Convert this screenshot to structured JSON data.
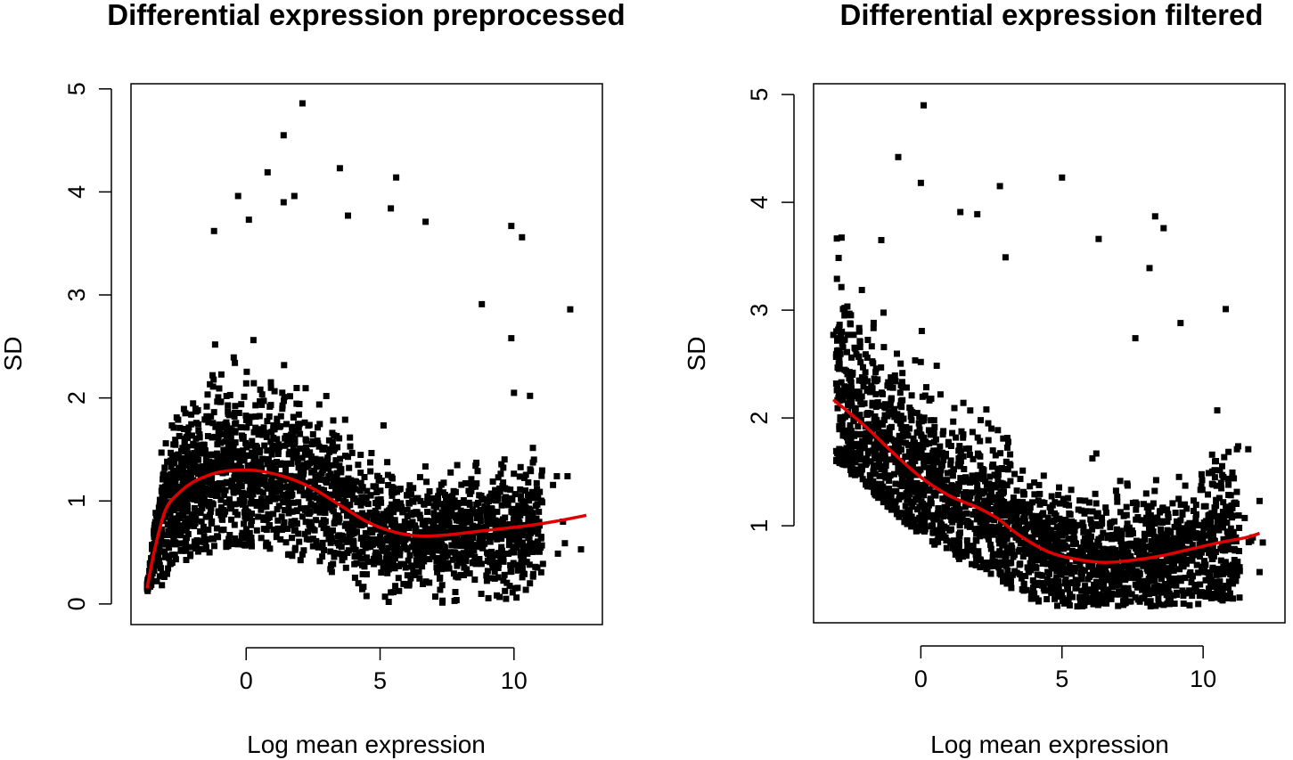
{
  "colors": {
    "points": "#000000",
    "trend": "#e00000",
    "axis": "#000000",
    "background": "#ffffff"
  },
  "chart_data": [
    {
      "type": "scatter",
      "title": "Differential expression preprocessed",
      "xlabel": "Log mean expression",
      "ylabel": "SD",
      "xlim": [
        -4.3,
        13.3
      ],
      "ylim": [
        -0.2,
        5.05
      ],
      "xticks": [
        0,
        5,
        10
      ],
      "yticks": [
        0,
        1,
        2,
        3,
        4,
        5
      ],
      "grid": false,
      "legend": "none",
      "cloud": {
        "x_range": [
          -3.7,
          12.6
        ],
        "ridge_x": -0.3,
        "spread": 0.5
      },
      "outliers": [
        {
          "x": 2.1,
          "y": 4.86
        },
        {
          "x": 1.4,
          "y": 4.55
        },
        {
          "x": 0.8,
          "y": 4.19
        },
        {
          "x": 3.5,
          "y": 4.23
        },
        {
          "x": 5.6,
          "y": 4.14
        },
        {
          "x": -0.3,
          "y": 3.96
        },
        {
          "x": 1.8,
          "y": 3.96
        },
        {
          "x": 1.4,
          "y": 3.9
        },
        {
          "x": 0.1,
          "y": 3.73
        },
        {
          "x": 3.8,
          "y": 3.77
        },
        {
          "x": 6.7,
          "y": 3.71
        },
        {
          "x": 9.9,
          "y": 3.67
        },
        {
          "x": 10.3,
          "y": 3.56
        },
        {
          "x": 5.4,
          "y": 3.84
        },
        {
          "x": -1.2,
          "y": 3.62
        },
        {
          "x": 12.1,
          "y": 2.86
        },
        {
          "x": 8.8,
          "y": 2.91
        },
        {
          "x": 9.9,
          "y": 2.58
        },
        {
          "x": 10.0,
          "y": 2.05
        },
        {
          "x": 10.6,
          "y": 2.02
        },
        {
          "x": 11.6,
          "y": 1.24
        },
        {
          "x": 12.0,
          "y": 1.24
        },
        {
          "x": 12.5,
          "y": 0.53
        },
        {
          "x": 11.9,
          "y": 0.59
        }
      ],
      "trend_line": {
        "x": [
          -3.7,
          -3.4,
          -3.0,
          -2.5,
          -2.0,
          -1.5,
          -1.0,
          -0.3,
          0.5,
          1.5,
          2.5,
          3.5,
          4.5,
          5.5,
          6.5,
          7.5,
          8.5,
          9.5,
          10.5,
          11.5,
          12.7
        ],
        "y": [
          0.15,
          0.55,
          0.92,
          1.08,
          1.18,
          1.24,
          1.28,
          1.3,
          1.29,
          1.23,
          1.12,
          0.96,
          0.8,
          0.7,
          0.66,
          0.67,
          0.7,
          0.73,
          0.76,
          0.8,
          0.86
        ]
      }
    },
    {
      "type": "scatter",
      "title": "Differential expression filtered",
      "xlabel": "Log mean expression",
      "ylabel": "SD",
      "xlim": [
        -3.8,
        12.9
      ],
      "ylim": [
        0.1,
        5.1
      ],
      "xticks": [
        0,
        5,
        10
      ],
      "yticks": [
        1,
        2,
        3,
        4,
        5
      ],
      "grid": false,
      "legend": "none",
      "cloud": {
        "x_range": [
          -3.3,
          12.0
        ],
        "ridge_x": -3.0,
        "spread": 0.5
      },
      "outliers": [
        {
          "x": 0.1,
          "y": 4.9
        },
        {
          "x": -0.8,
          "y": 4.42
        },
        {
          "x": 5.0,
          "y": 4.23
        },
        {
          "x": 0.0,
          "y": 4.18
        },
        {
          "x": 2.8,
          "y": 4.15
        },
        {
          "x": 8.3,
          "y": 3.87
        },
        {
          "x": 8.6,
          "y": 3.76
        },
        {
          "x": -1.4,
          "y": 3.65
        },
        {
          "x": 1.4,
          "y": 3.91
        },
        {
          "x": 2.0,
          "y": 3.89
        },
        {
          "x": 6.3,
          "y": 3.66
        },
        {
          "x": 3.0,
          "y": 3.49
        },
        {
          "x": 8.1,
          "y": 3.39
        },
        {
          "x": 10.8,
          "y": 3.01
        },
        {
          "x": 7.6,
          "y": 2.74
        },
        {
          "x": 9.2,
          "y": 2.88
        },
        {
          "x": -3.1,
          "y": 2.77
        },
        {
          "x": -2.9,
          "y": 2.74
        },
        {
          "x": 10.5,
          "y": 2.07
        },
        {
          "x": 11.2,
          "y": 1.71
        },
        {
          "x": 11.6,
          "y": 1.71
        },
        {
          "x": 11.7,
          "y": 0.86
        },
        {
          "x": 12.0,
          "y": 1.23
        },
        {
          "x": 12.0,
          "y": 0.57
        },
        {
          "x": 10.8,
          "y": 0.58
        },
        {
          "x": 10.9,
          "y": 1.38
        }
      ],
      "trend_line": {
        "x": [
          -3.1,
          -2.0,
          -1.0,
          0.0,
          1.0,
          2.0,
          2.7,
          3.5,
          4.5,
          5.5,
          6.5,
          7.5,
          8.5,
          9.5,
          10.5,
          11.5,
          12.0
        ],
        "y": [
          2.17,
          1.93,
          1.68,
          1.45,
          1.28,
          1.17,
          1.07,
          0.91,
          0.76,
          0.69,
          0.66,
          0.68,
          0.72,
          0.78,
          0.84,
          0.89,
          0.93
        ]
      }
    }
  ]
}
